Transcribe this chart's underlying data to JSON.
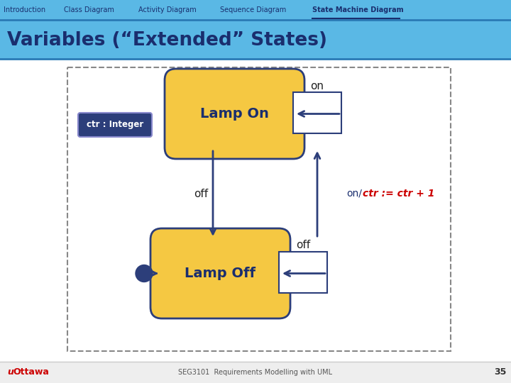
{
  "title_tab": "State Machine Diagram",
  "tab_items": [
    "Introduction",
    "Class Diagram",
    "Activity Diagram",
    "Sequence Diagram",
    "State Machine Diagram"
  ],
  "slide_title": "Variables (“Extended” States)",
  "bg_top_color": "#5bb8e8",
  "bg_main_color": "#ffffff",
  "state_fill": "#f5c842",
  "state_edge": "#2c3e7a",
  "state1_label": "Lamp On",
  "state2_label": "Lamp Off",
  "var_box_label": "ctr : Integer",
  "var_box_fill": "#2c3e7a",
  "var_box_text": "#ffffff",
  "transition_color": "#2c3e7a",
  "label_on": "on",
  "label_off_left": "off",
  "label_off_right": "off",
  "self_label_color": "#cc0000",
  "footer_text": "SEG3101  Requirements Modelling with UML",
  "slide_number": "35",
  "nav_x": [
    5,
    90,
    195,
    310,
    440
  ]
}
